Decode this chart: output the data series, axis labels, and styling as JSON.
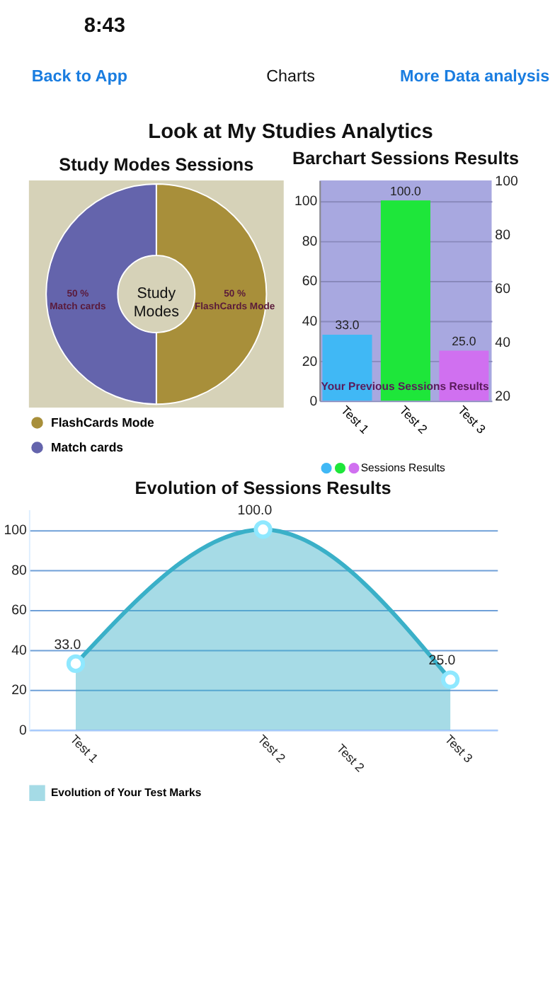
{
  "chart_data": [
    {
      "type": "other",
      "title": "Look at My Studies Analytics",
      "annotations": [
        "8:43",
        "Back to App",
        "Charts",
        "More Data analysis"
      ]
    },
    {
      "type": "donut",
      "title": "Study Modes Sessions",
      "categories": [
        "FlashCards Mode",
        "Match cards"
      ],
      "values": [
        50,
        50
      ],
      "colors": [
        "#a88f3a",
        "#6464ac"
      ],
      "value_labels": [
        "50 %",
        "50 %"
      ],
      "annotations": [
        "Study Modes"
      ],
      "legend": "bottom left"
    },
    {
      "type": "bar",
      "title": "Barchart Sessions Results",
      "categories": [
        "Test 1",
        "Test 2",
        "Test 3"
      ],
      "series": [
        {
          "name": "Sessions Results",
          "values": [
            33,
            100,
            25
          ],
          "colors": [
            "#40b8f5",
            "#1ee63a",
            "#d070f0"
          ],
          "value_labels": [
            "33.0",
            "100.0",
            "25.0"
          ]
        }
      ],
      "ylim": [
        0,
        110
      ],
      "yticks": [
        0,
        20,
        40,
        60,
        80,
        100
      ],
      "y2lim": [
        18,
        100
      ],
      "y2ticks": [
        20,
        40,
        60,
        80,
        100
      ],
      "grid": "y",
      "legend": "bottom",
      "annotations": [
        "Your Previous Sessions Results"
      ]
    },
    {
      "type": "area",
      "title": "Evolution of Sessions Results",
      "categories": [
        "Test 1",
        "Test 2",
        "Test 3"
      ],
      "series": [
        {
          "name": "Evolution of Your Test Marks",
          "color": "#3ab0c8",
          "values": [
            33,
            100,
            25
          ],
          "value_labels": [
            "33.0",
            "100.0",
            "25.0"
          ]
        }
      ],
      "annotations": [
        "Test 2"
      ],
      "ylim": [
        0,
        110
      ],
      "yticks": [
        0,
        20,
        40,
        60,
        80,
        100
      ],
      "grid": "y",
      "marker": "circle",
      "legend": "bottom left"
    }
  ]
}
